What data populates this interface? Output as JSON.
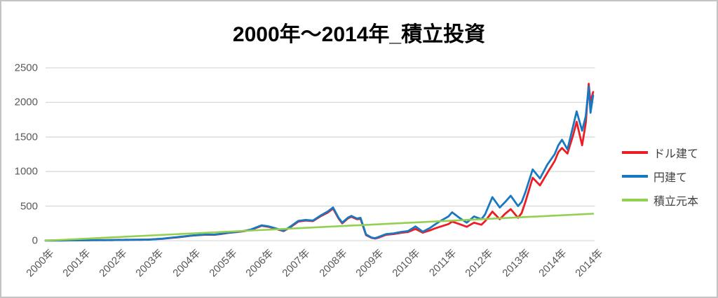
{
  "chart_data": {
    "type": "line",
    "title": "2000年〜2014年_積立投資",
    "xlabel": "",
    "ylabel": "",
    "ylim": [
      0,
      2500
    ],
    "xlim": [
      2000,
      2015
    ],
    "grid": "horizontal",
    "legend_position": "right",
    "y_ticks": [
      0,
      500,
      1000,
      1500,
      2000,
      2500
    ],
    "x_ticks": [
      "2000年",
      "2001年",
      "2002年",
      "2003年",
      "2004年",
      "2005年",
      "2006年",
      "2007年",
      "2008年",
      "2009年",
      "2010年",
      "2011年",
      "2012年",
      "2013年",
      "2014年",
      "2014年"
    ],
    "x": [
      2000.0,
      2000.2,
      2000.4,
      2000.6,
      2000.8,
      2001.0,
      2001.2,
      2001.4,
      2001.6,
      2001.8,
      2002.0,
      2002.2,
      2002.4,
      2002.6,
      2002.8,
      2003.0,
      2003.2,
      2003.4,
      2003.6,
      2003.8,
      2004.0,
      2004.2,
      2004.4,
      2004.6,
      2004.8,
      2005.0,
      2005.2,
      2005.4,
      2005.6,
      2005.9,
      2006.1,
      2006.3,
      2006.5,
      2006.7,
      2006.9,
      2007.1,
      2007.3,
      2007.5,
      2007.7,
      2007.85,
      2008.0,
      2008.1,
      2008.25,
      2008.35,
      2008.5,
      2008.6,
      2008.75,
      2008.9,
      2009.0,
      2009.1,
      2009.3,
      2009.5,
      2009.7,
      2009.9,
      2010.1,
      2010.3,
      2010.5,
      2010.65,
      2010.8,
      2011.0,
      2011.1,
      2011.3,
      2011.5,
      2011.7,
      2011.9,
      2012.0,
      2012.2,
      2012.4,
      2012.55,
      2012.7,
      2012.9,
      2013.0,
      2013.1,
      2013.3,
      2013.5,
      2013.7,
      2013.9,
      2014.0,
      2014.1,
      2014.25,
      2014.4,
      2014.5,
      2014.65,
      2014.75,
      2014.83,
      2014.88,
      2014.95
    ],
    "series": [
      {
        "name": "ドル建て",
        "color": "#ee1c25",
        "values": [
          1,
          2,
          4,
          3,
          6,
          5,
          8,
          6,
          9,
          7,
          12,
          10,
          14,
          12,
          16,
          20,
          26,
          38,
          48,
          60,
          72,
          80,
          86,
          84,
          96,
          112,
          122,
          136,
          155,
          215,
          198,
          168,
          138,
          200,
          275,
          292,
          282,
          350,
          405,
          465,
          320,
          250,
          320,
          345,
          310,
          315,
          80,
          40,
          30,
          45,
          85,
          95,
          112,
          125,
          170,
          115,
          150,
          180,
          205,
          240,
          275,
          240,
          200,
          260,
          230,
          280,
          420,
          310,
          390,
          455,
          330,
          400,
          560,
          910,
          800,
          980,
          1150,
          1280,
          1340,
          1260,
          1520,
          1720,
          1380,
          1700,
          2270,
          2000,
          2150
        ]
      },
      {
        "name": "円建て",
        "color": "#1878c2",
        "values": [
          1,
          3,
          2,
          5,
          4,
          7,
          5,
          9,
          6,
          10,
          9,
          13,
          11,
          15,
          13,
          22,
          28,
          40,
          52,
          63,
          75,
          82,
          90,
          87,
          100,
          115,
          125,
          140,
          160,
          222,
          205,
          175,
          142,
          210,
          285,
          300,
          290,
          360,
          420,
          480,
          330,
          260,
          330,
          358,
          320,
          330,
          90,
          45,
          35,
          55,
          95,
          105,
          125,
          140,
          205,
          130,
          185,
          240,
          290,
          350,
          410,
          330,
          260,
          350,
          310,
          380,
          630,
          480,
          560,
          650,
          500,
          560,
          700,
          1030,
          900,
          1100,
          1250,
          1380,
          1460,
          1320,
          1650,
          1870,
          1590,
          1800,
          2230,
          1850,
          2100
        ]
      },
      {
        "name": "積立元本",
        "color": "#92d050",
        "x": [
          2000.0,
          2014.95
        ],
        "values": [
          0,
          390
        ]
      }
    ]
  }
}
